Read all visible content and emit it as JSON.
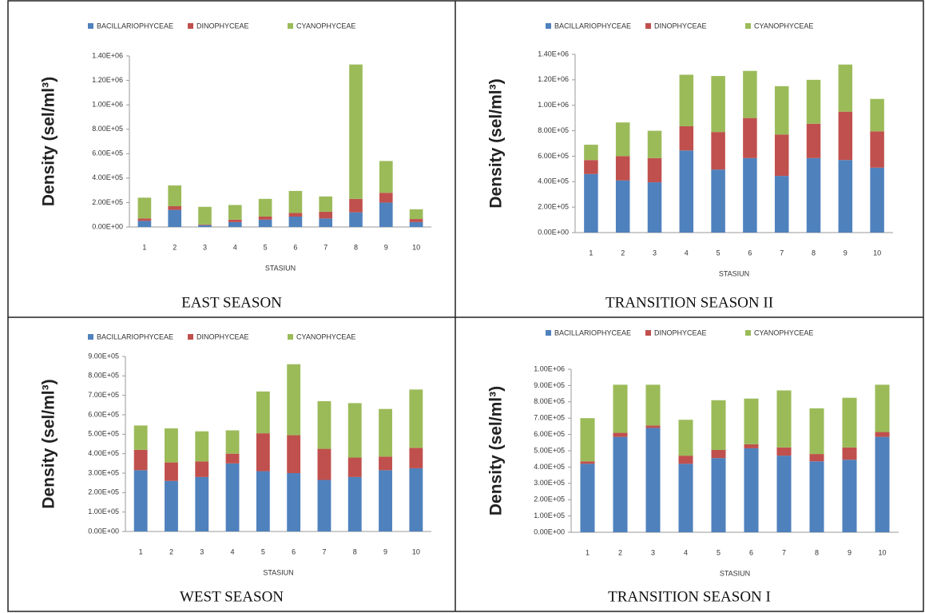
{
  "chart_data": [
    {
      "type": "stacked-bar",
      "title": "EAST SEASON",
      "x_label": "STASIUN",
      "y_label": "Density (sel/ml³)",
      "categories": [
        "1",
        "2",
        "3",
        "4",
        "5",
        "6",
        "7",
        "8",
        "9",
        "10"
      ],
      "series": [
        {
          "name": "BACILLARIOPHYCEAE",
          "color": "#4f81bd",
          "values": [
            50000,
            140000,
            15000,
            40000,
            60000,
            85000,
            70000,
            120000,
            200000,
            40000
          ]
        },
        {
          "name": "DINOPHYCEAE",
          "color": "#c0504d",
          "values": [
            20000,
            30000,
            5000,
            20000,
            25000,
            30000,
            55000,
            110000,
            80000,
            25000
          ]
        },
        {
          "name": "CYANOPHYCEAE",
          "color": "#9bbb59",
          "values": [
            170000,
            170000,
            145000,
            120000,
            145000,
            180000,
            125000,
            1100000,
            260000,
            80000
          ]
        }
      ],
      "ylim": [
        0,
        1400000
      ],
      "yticks": [
        {
          "value": 0,
          "label": "0.00E+00"
        },
        {
          "value": 200000,
          "label": "2.00E+05"
        },
        {
          "value": 400000,
          "label": "4.00E+05"
        },
        {
          "value": 600000,
          "label": "6.00E+05"
        },
        {
          "value": 800000,
          "label": "8.00E+05"
        },
        {
          "value": 1000000,
          "label": "1.00E+06"
        },
        {
          "value": 1200000,
          "label": "1.20E+06"
        },
        {
          "value": 1400000,
          "label": "1.40E+06"
        }
      ]
    },
    {
      "type": "stacked-bar",
      "title": "TRANSITION SEASON II",
      "x_label": "STASIUN",
      "y_label": "Density (sel/ml³)",
      "categories": [
        "1",
        "2",
        "3",
        "4",
        "5",
        "6",
        "7",
        "8",
        "9",
        "10"
      ],
      "series": [
        {
          "name": "BACILLARIOPHYCEAE",
          "color": "#4f81bd",
          "values": [
            460000,
            410000,
            395000,
            645000,
            495000,
            585000,
            445000,
            585000,
            570000,
            510000
          ]
        },
        {
          "name": "DINOPHYCEAE",
          "color": "#c0504d",
          "values": [
            110000,
            190000,
            190000,
            190000,
            295000,
            315000,
            325000,
            270000,
            380000,
            285000
          ]
        },
        {
          "name": "CYANOPHYCEAE",
          "color": "#9bbb59",
          "values": [
            120000,
            265000,
            215000,
            405000,
            440000,
            370000,
            380000,
            345000,
            370000,
            255000
          ]
        }
      ],
      "ylim": [
        0,
        1400000
      ],
      "yticks": [
        {
          "value": 0,
          "label": "0.00E+00"
        },
        {
          "value": 200000,
          "label": "2.00E+05"
        },
        {
          "value": 400000,
          "label": "4.00E+05"
        },
        {
          "value": 600000,
          "label": "6.00E+05"
        },
        {
          "value": 800000,
          "label": "8.00E+05"
        },
        {
          "value": 1000000,
          "label": "1.00E+06"
        },
        {
          "value": 1200000,
          "label": "1.20E+06"
        },
        {
          "value": 1400000,
          "label": "1.40E+06"
        }
      ]
    },
    {
      "type": "stacked-bar",
      "title": "WEST SEASON",
      "x_label": "STASIUN",
      "y_label": "Density (sel/ml³)",
      "categories": [
        "1",
        "2",
        "3",
        "4",
        "5",
        "6",
        "7",
        "8",
        "9",
        "10"
      ],
      "series": [
        {
          "name": "BACILLARIOPHYCEAE",
          "color": "#4f81bd",
          "values": [
            315000,
            260000,
            280000,
            350000,
            310000,
            300000,
            265000,
            280000,
            315000,
            325000
          ]
        },
        {
          "name": "DINOPHYCEAE",
          "color": "#c0504d",
          "values": [
            105000,
            95000,
            80000,
            50000,
            195000,
            195000,
            160000,
            100000,
            70000,
            105000
          ]
        },
        {
          "name": "CYANOPHYCEAE",
          "color": "#9bbb59",
          "values": [
            125000,
            175000,
            155000,
            120000,
            215000,
            365000,
            245000,
            280000,
            245000,
            300000
          ]
        }
      ],
      "ylim": [
        0,
        900000
      ],
      "yticks": [
        {
          "value": 0,
          "label": "0.00E+00"
        },
        {
          "value": 100000,
          "label": "1.00E+05"
        },
        {
          "value": 200000,
          "label": "2.00E+05"
        },
        {
          "value": 300000,
          "label": "3.00E+05"
        },
        {
          "value": 400000,
          "label": "4.00E+05"
        },
        {
          "value": 500000,
          "label": "5.00E+05"
        },
        {
          "value": 600000,
          "label": "6.00E+05"
        },
        {
          "value": 700000,
          "label": "7.00E+05"
        },
        {
          "value": 800000,
          "label": "8.00E+05"
        },
        {
          "value": 900000,
          "label": "9.00E+05"
        }
      ]
    },
    {
      "type": "stacked-bar",
      "title": "TRANSITION SEASON I",
      "x_label": "STASIUN",
      "y_label": "Density (sel/ml³)",
      "categories": [
        "1",
        "2",
        "3",
        "4",
        "5",
        "6",
        "7",
        "8",
        "9",
        "10"
      ],
      "series": [
        {
          "name": "BACILLARIOPHYCEAE",
          "color": "#4f81bd",
          "values": [
            420000,
            585000,
            640000,
            420000,
            455000,
            515000,
            470000,
            435000,
            445000,
            585000
          ]
        },
        {
          "name": "DINOPHYCEAE",
          "color": "#c0504d",
          "values": [
            15000,
            25000,
            15000,
            50000,
            50000,
            25000,
            50000,
            45000,
            75000,
            30000
          ]
        },
        {
          "name": "CYANOPHYCEAE",
          "color": "#9bbb59",
          "values": [
            265000,
            295000,
            250000,
            220000,
            305000,
            280000,
            350000,
            280000,
            305000,
            290000
          ]
        }
      ],
      "ylim": [
        0,
        1000000
      ],
      "yticks": [
        {
          "value": 0,
          "label": "0.00E+00"
        },
        {
          "value": 100000,
          "label": "1.00E+05"
        },
        {
          "value": 200000,
          "label": "2.00E+05"
        },
        {
          "value": 300000,
          "label": "3.00E+05"
        },
        {
          "value": 400000,
          "label": "4.00E+05"
        },
        {
          "value": 500000,
          "label": "5.00E+05"
        },
        {
          "value": 600000,
          "label": "6.00E+05"
        },
        {
          "value": 700000,
          "label": "7.00E+05"
        },
        {
          "value": 800000,
          "label": "8.00E+05"
        },
        {
          "value": 900000,
          "label": "9.00E+05"
        },
        {
          "value": 1000000,
          "label": "1.00E+06"
        }
      ]
    }
  ]
}
